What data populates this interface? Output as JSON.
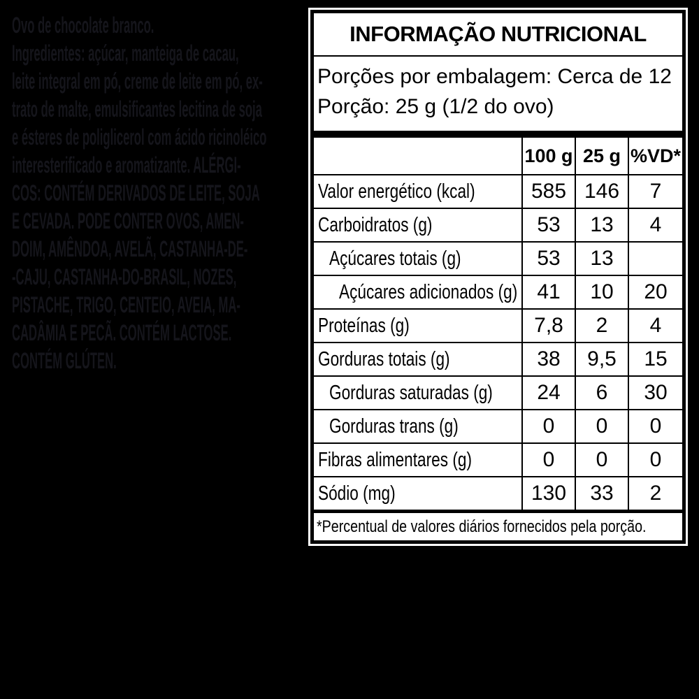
{
  "colors": {
    "background": "#000000",
    "label_background": "#ffffff",
    "label_ink": "#000000",
    "side_text": "#15151b"
  },
  "side_text": {
    "lines": [
      "Ovo de chocolate branco.",
      "Ingredientes: açúcar, manteiga de cacau,",
      "leite integral em pó, creme de leite em pó, ex-",
      "trato de malte, emulsificantes lecitina de soja",
      "e ésteres de poliglicerol com ácido ricinoléico",
      "interesterificado e aromatizante. ALÉRGI-",
      "COS: CONTÉM DERIVADOS DE LEITE, SOJA",
      "E CEVADA. PODE CONTER OVOS, AMEN-",
      "DOIM, AMÊNDOA, AVELÃ, CASTANHA-DE-",
      "-CAJU, CASTANHA-DO-BRASIL, NOZES,",
      "PISTACHE, TRIGO, CENTEIO, AVEIA, MA-",
      "CADÂMIA E PECÃ. CONTÉM LACTOSE.",
      "CONTÉM GLÚTEN."
    ]
  },
  "label": {
    "title": "INFORMAÇÃO NUTRICIONAL",
    "servings_per_package": "Porções por embalagem: Cerca de 12",
    "portion": "Porção: 25 g (1/2 do ovo)",
    "columns": [
      "100 g",
      "25 g",
      "%VD*"
    ],
    "rows": [
      {
        "name": "Valor energético (kcal)",
        "indent": 0,
        "v100": "585",
        "v25": "146",
        "vd": "7"
      },
      {
        "name": "Carboidratos (g)",
        "indent": 0,
        "v100": "53",
        "v25": "13",
        "vd": "4"
      },
      {
        "name": "Açúcares totais (g)",
        "indent": 1,
        "v100": "53",
        "v25": "13",
        "vd": ""
      },
      {
        "name": "Açúcares adicionados (g)",
        "indent": 2,
        "v100": "41",
        "v25": "10",
        "vd": "20"
      },
      {
        "name": "Proteínas (g)",
        "indent": 0,
        "v100": "7,8",
        "v25": "2",
        "vd": "4"
      },
      {
        "name": "Gorduras totais (g)",
        "indent": 0,
        "v100": "38",
        "v25": "9,5",
        "vd": "15"
      },
      {
        "name": "Gorduras saturadas (g)",
        "indent": 1,
        "v100": "24",
        "v25": "6",
        "vd": "30"
      },
      {
        "name": "Gorduras trans (g)",
        "indent": 1,
        "v100": "0",
        "v25": "0",
        "vd": "0"
      },
      {
        "name": "Fibras alimentares (g)",
        "indent": 0,
        "v100": "0",
        "v25": "0",
        "vd": "0"
      },
      {
        "name": "Sódio (mg)",
        "indent": 0,
        "v100": "130",
        "v25": "33",
        "vd": "2"
      }
    ],
    "footnote": "*Percentual de valores diários fornecidos pela porção."
  }
}
